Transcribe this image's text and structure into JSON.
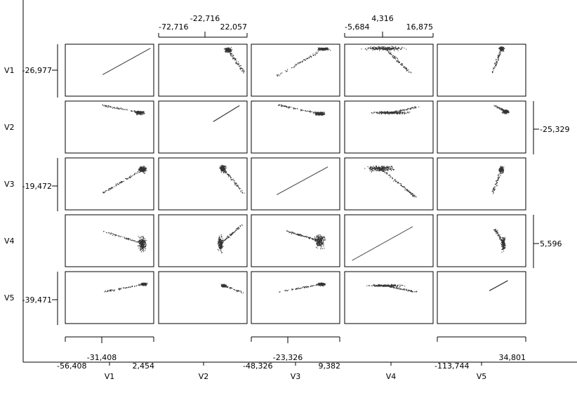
{
  "chart_data": {
    "type": "scatter",
    "variables": [
      "V1",
      "V2",
      "V3",
      "V4",
      "V5"
    ],
    "row_labels": [
      "V1",
      "V2",
      "V3",
      "V4",
      "V5"
    ],
    "column_labels": [
      "V1",
      "V2",
      "V3",
      "V4",
      "V5"
    ],
    "axis_ticks": {
      "V1": {
        "min": "-56,408",
        "mid": "-31,408",
        "max": "2,454"
      },
      "V2": {
        "min": "-72,716",
        "mid": "-22,716",
        "max": "22,057"
      },
      "V3": {
        "min": "-48,326",
        "mid": "-23,326",
        "max": "9,382"
      },
      "V4": {
        "min": "-5,684",
        "mid": "4,316",
        "max": "16,875"
      },
      "V5": {
        "min": "-113,744",
        "max": "34,801"
      }
    },
    "row_axis_ticks": {
      "V1": "-26,977",
      "V2": "-25,329",
      "V3": "-19,472",
      "V4": "5,596",
      "V5": "-39,471"
    },
    "scale_positions": {
      "V1": "bottom",
      "V2": "top",
      "V3": "bottom",
      "V4": "top",
      "V5": "bottom"
    },
    "row_scale_sides": {
      "V1": "left",
      "V2": "right",
      "V3": "left",
      "V4": "right",
      "V5": "left"
    },
    "grid": false,
    "point_color": "#333333"
  }
}
